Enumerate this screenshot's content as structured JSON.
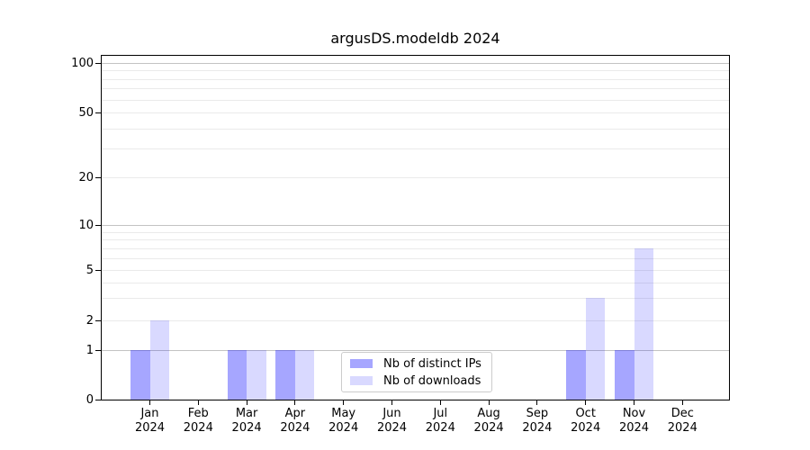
{
  "title": "argusDS.modeldb 2024",
  "colors": {
    "distinct_ips_fill": "#a6a6ff",
    "distinct_ips_rgba": "rgba(0,0,255,0.35)",
    "downloads_fill": "#d9d9ff",
    "downloads_rgba": "rgba(0,0,255,0.15)",
    "grid_major": "#c3c3c3",
    "grid_minor": "#eaeaea",
    "axis": "#000000",
    "legend_border": "#cccccc",
    "background": "#ffffff",
    "text": "#000000"
  },
  "chart_data": {
    "type": "bar",
    "title": "argusDS.modeldb 2024",
    "categories": [
      "Jan",
      "Feb",
      "Mar",
      "Apr",
      "May",
      "Jun",
      "Jul",
      "Aug",
      "Sep",
      "Oct",
      "Nov",
      "Dec"
    ],
    "year_label": "2024",
    "series": [
      {
        "name": "Nb of distinct IPs",
        "color": "#a6a6ff",
        "values": [
          1,
          0,
          1,
          1,
          0,
          0,
          0,
          0,
          0,
          1,
          1,
          0
        ]
      },
      {
        "name": "Nb of downloads",
        "color": "#d9d9ff",
        "values": [
          2,
          0,
          1,
          1,
          0,
          0,
          0,
          0,
          0,
          3,
          7,
          0
        ]
      }
    ],
    "xlabel": "",
    "ylabel": "",
    "yscale": "log-like with zero baseline",
    "yticks": [
      0,
      1,
      2,
      5,
      10,
      20,
      50,
      100
    ],
    "ytick_labels": [
      "0",
      "1",
      "2",
      "5",
      "10",
      "20",
      "50",
      "100"
    ],
    "major_gridlines": [
      1,
      10,
      100
    ],
    "minor_gridlines": [
      2,
      3,
      4,
      5,
      6,
      7,
      8,
      9,
      20,
      30,
      40,
      50,
      60,
      70,
      80,
      90
    ],
    "ylim": [
      0,
      112
    ],
    "grid": true,
    "legend_position": "lower center"
  }
}
